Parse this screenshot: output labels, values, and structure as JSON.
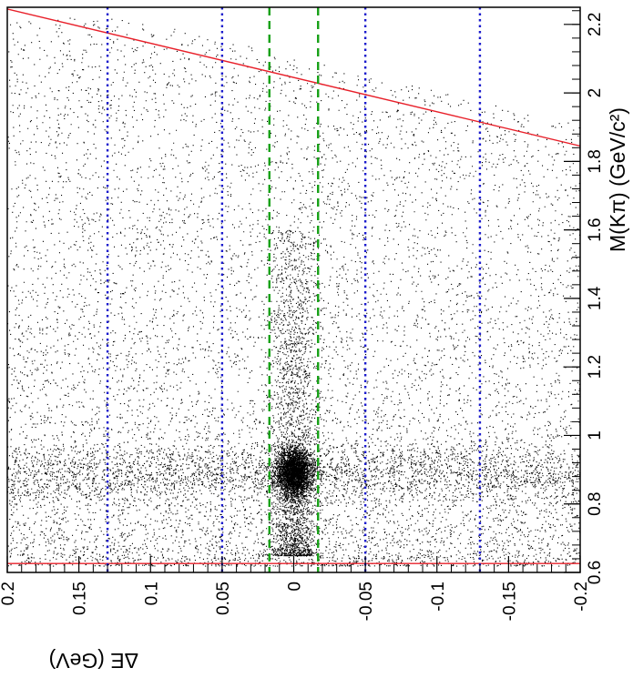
{
  "chart_data": {
    "type": "scatter",
    "description_axes": "rotated scatter plot: Delta E along the bottom (decreasing to the right), M(K pi) along the right side (increasing upward)",
    "x_axis": {
      "label": "ΔE (GeV)",
      "range": [
        0.2,
        -0.2
      ],
      "ticks": [
        "0.2",
        "0.15",
        "0.1",
        "0.05",
        "0",
        "-0.05",
        "-0.1",
        "-0.15",
        "-0.2"
      ],
      "tick_values": [
        0.2,
        0.15,
        0.1,
        0.05,
        0,
        -0.05,
        -0.1,
        -0.15,
        -0.2
      ]
    },
    "y_axis": {
      "label": "M(Kπ) (GeV/c²)",
      "range": [
        0.6,
        2.25
      ],
      "ticks": [
        "0.6",
        "0.8",
        "1",
        "1.2",
        "1.4",
        "1.6",
        "1.8",
        "2",
        "2.2"
      ],
      "tick_values": [
        0.6,
        0.8,
        1.0,
        1.2,
        1.4,
        1.6,
        1.8,
        2.0,
        2.2
      ]
    },
    "lines": [
      {
        "name": "kinematic-limit",
        "color": "#e8202a",
        "style": "solid",
        "points": [
          [
            0.2,
            2.245
          ],
          [
            -0.2,
            1.845
          ]
        ]
      },
      {
        "name": "lower-mass-cut",
        "color": "#e8202a",
        "style": "solid",
        "points": [
          [
            0.2,
            0.626
          ],
          [
            -0.2,
            0.626
          ]
        ]
      },
      {
        "name": "signal-window-left",
        "color": "#16a016",
        "style": "dashed",
        "x": 0.017
      },
      {
        "name": "signal-window-right",
        "color": "#16a016",
        "style": "dashed",
        "x": -0.017
      },
      {
        "name": "sideband-1",
        "color": "#1a1acc",
        "style": "dotted",
        "x": 0.13
      },
      {
        "name": "sideband-2",
        "color": "#1a1acc",
        "style": "dotted",
        "x": 0.05
      },
      {
        "name": "sideband-3",
        "color": "#1a1acc",
        "style": "dotted",
        "x": -0.05
      },
      {
        "name": "sideband-4",
        "color": "#1a1acc",
        "style": "dotted",
        "x": -0.13
      }
    ],
    "clusters": [
      {
        "name": "signal-peak",
        "x": 0.0,
        "y": 0.892,
        "sx": 0.008,
        "sy": 0.05
      },
      {
        "name": "kstar-band",
        "y": 0.892,
        "sy": 0.05
      },
      {
        "name": "signal-vertical-band",
        "x": 0.0,
        "sx": 0.01
      }
    ],
    "colors": {
      "points": "#000000",
      "frame": "#000000"
    }
  }
}
